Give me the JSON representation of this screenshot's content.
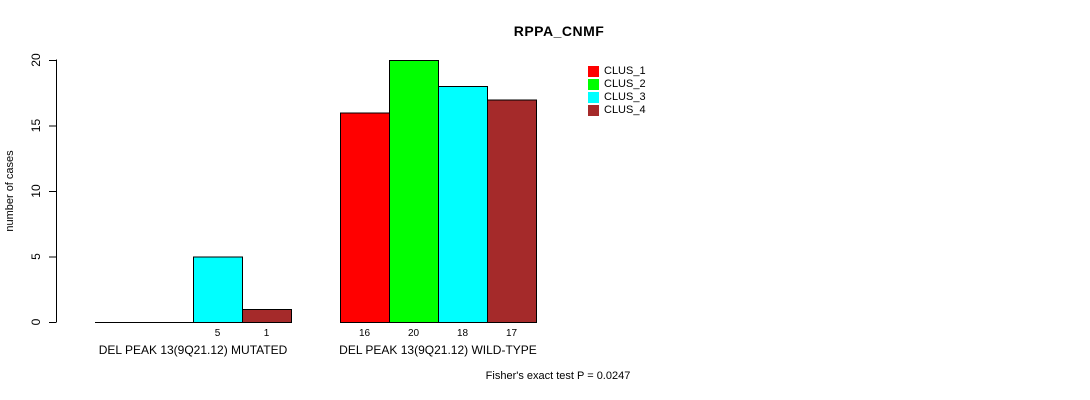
{
  "chart_data": {
    "type": "bar",
    "title": "RPPA_CNMF",
    "xlabel": "",
    "ylabel": "number of cases",
    "ylim": [
      0,
      20
    ],
    "yticks": [
      0,
      5,
      10,
      15,
      20
    ],
    "grid": false,
    "legend_position": "top-right",
    "legend_entries": [
      "CLUS_1",
      "CLUS_2",
      "CLUS_3",
      "CLUS_4"
    ],
    "categories": [
      "DEL PEAK 13(9Q21.12) MUTATED",
      "DEL PEAK 13(9Q21.12) WILD-TYPE"
    ],
    "series": [
      {
        "name": "CLUS_1",
        "color": "#FF0000",
        "values": [
          0,
          16
        ]
      },
      {
        "name": "CLUS_2",
        "color": "#00FF00",
        "values": [
          0,
          20
        ]
      },
      {
        "name": "CLUS_3",
        "color": "#00FFFF",
        "values": [
          5,
          18
        ]
      },
      {
        "name": "CLUS_4",
        "color": "#A52A2A",
        "values": [
          1,
          17
        ]
      }
    ],
    "visible_bar_value_labels": [
      "5",
      "1",
      "16",
      "20",
      "18",
      "17"
    ],
    "annotation": "Fisher's exact test P = 0.0247"
  },
  "colors": {
    "axis": "#000000",
    "bar_border": "#000000",
    "text": "#000000",
    "background": "#FFFFFF"
  }
}
